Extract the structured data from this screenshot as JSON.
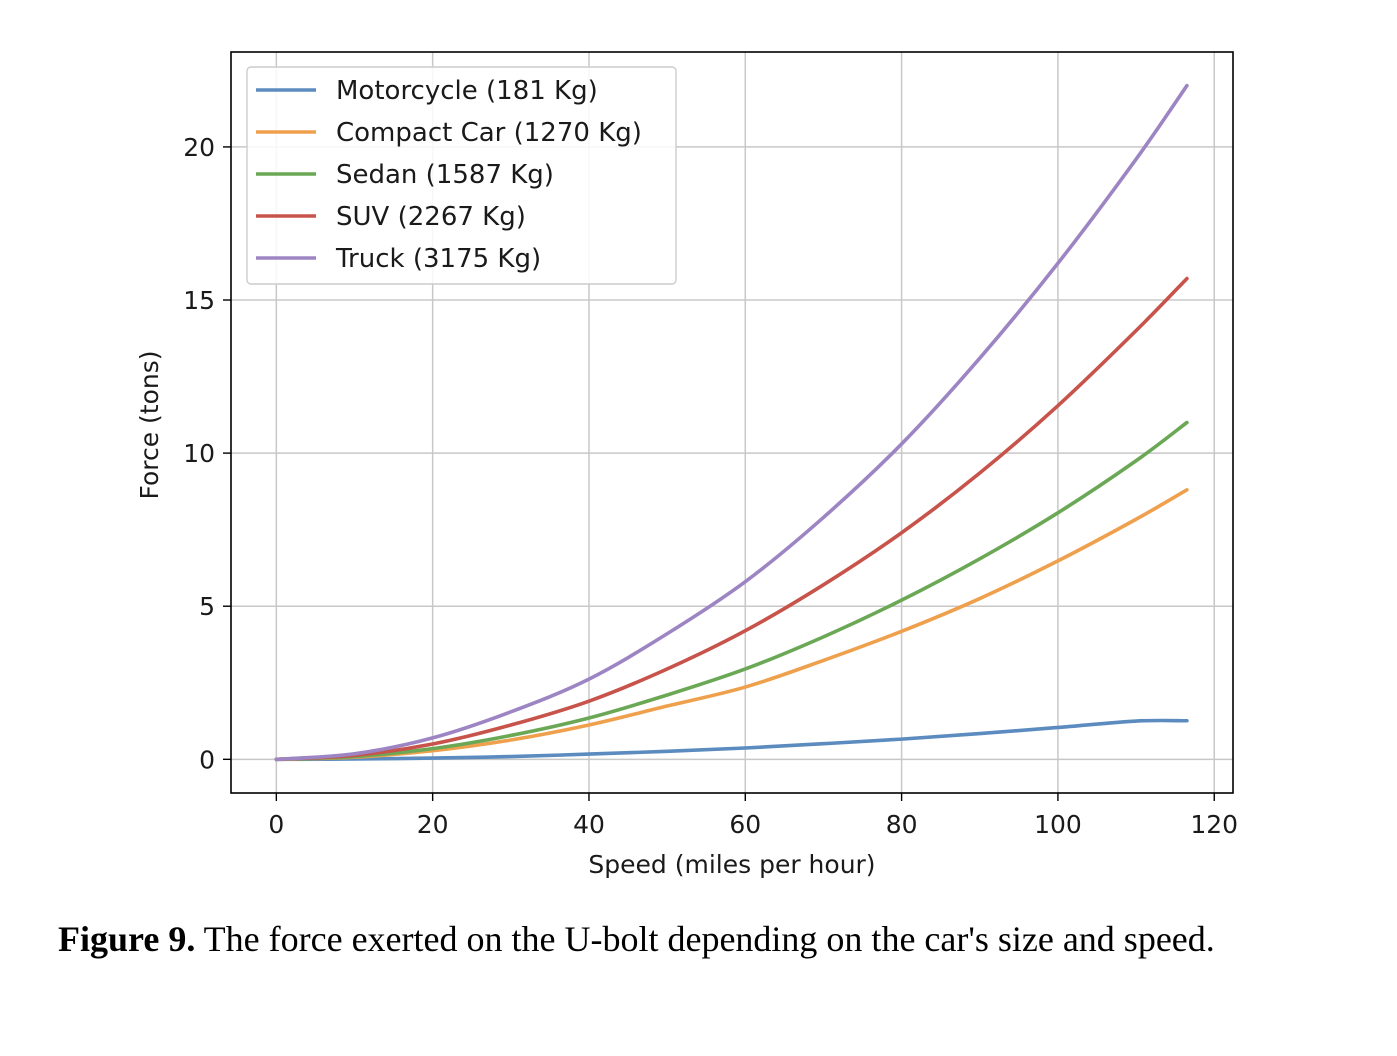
{
  "caption": {
    "label": "Figure 9.",
    "text": " The force exerted on the U-bolt depending on the car's size and speed."
  },
  "chart_data": {
    "type": "line",
    "title": "",
    "xlabel": "Speed (miles per hour)",
    "ylabel": "Force (tons)",
    "xlim": [
      -5.8,
      122.4
    ],
    "ylim": [
      -1.1,
      23.1
    ],
    "xticks": [
      0,
      20,
      40,
      60,
      80,
      100,
      120
    ],
    "yticks": [
      0,
      5,
      10,
      15,
      20
    ],
    "grid": true,
    "legend_position": "top-left",
    "x": [
      0,
      10,
      20,
      30,
      40,
      50,
      60,
      70,
      80,
      90,
      100,
      110,
      116.5
    ],
    "series": [
      {
        "name": "Motorcycle (181 Kg)",
        "color": "#5b8bbf",
        "values": [
          0,
          0.01,
          0.04,
          0.09,
          0.17,
          0.26,
          0.37,
          0.51,
          0.66,
          0.84,
          1.04,
          1.25,
          1.26
        ]
      },
      {
        "name": "Compact Car (1270 Kg)",
        "color": "#efa04d",
        "values": [
          0,
          0.07,
          0.28,
          0.63,
          1.12,
          1.74,
          2.36,
          3.23,
          4.18,
          5.25,
          6.48,
          7.84,
          8.8
        ]
      },
      {
        "name": "Sedan (1587 Kg)",
        "color": "#6ba856",
        "values": [
          0,
          0.09,
          0.35,
          0.78,
          1.35,
          2.1,
          2.95,
          4.0,
          5.2,
          6.55,
          8.05,
          9.75,
          11.0
        ]
      },
      {
        "name": "SUV (2267 Kg)",
        "color": "#c7534a",
        "values": [
          0,
          0.13,
          0.5,
          1.12,
          1.9,
          2.95,
          4.2,
          5.7,
          7.4,
          9.35,
          11.55,
          14.0,
          15.7
        ]
      },
      {
        "name": "Truck (3175 Kg)",
        "color": "#9d85c4",
        "values": [
          0,
          0.18,
          0.7,
          1.55,
          2.62,
          4.1,
          5.8,
          7.9,
          10.3,
          13.1,
          16.2,
          19.6,
          22.0
        ]
      }
    ]
  }
}
